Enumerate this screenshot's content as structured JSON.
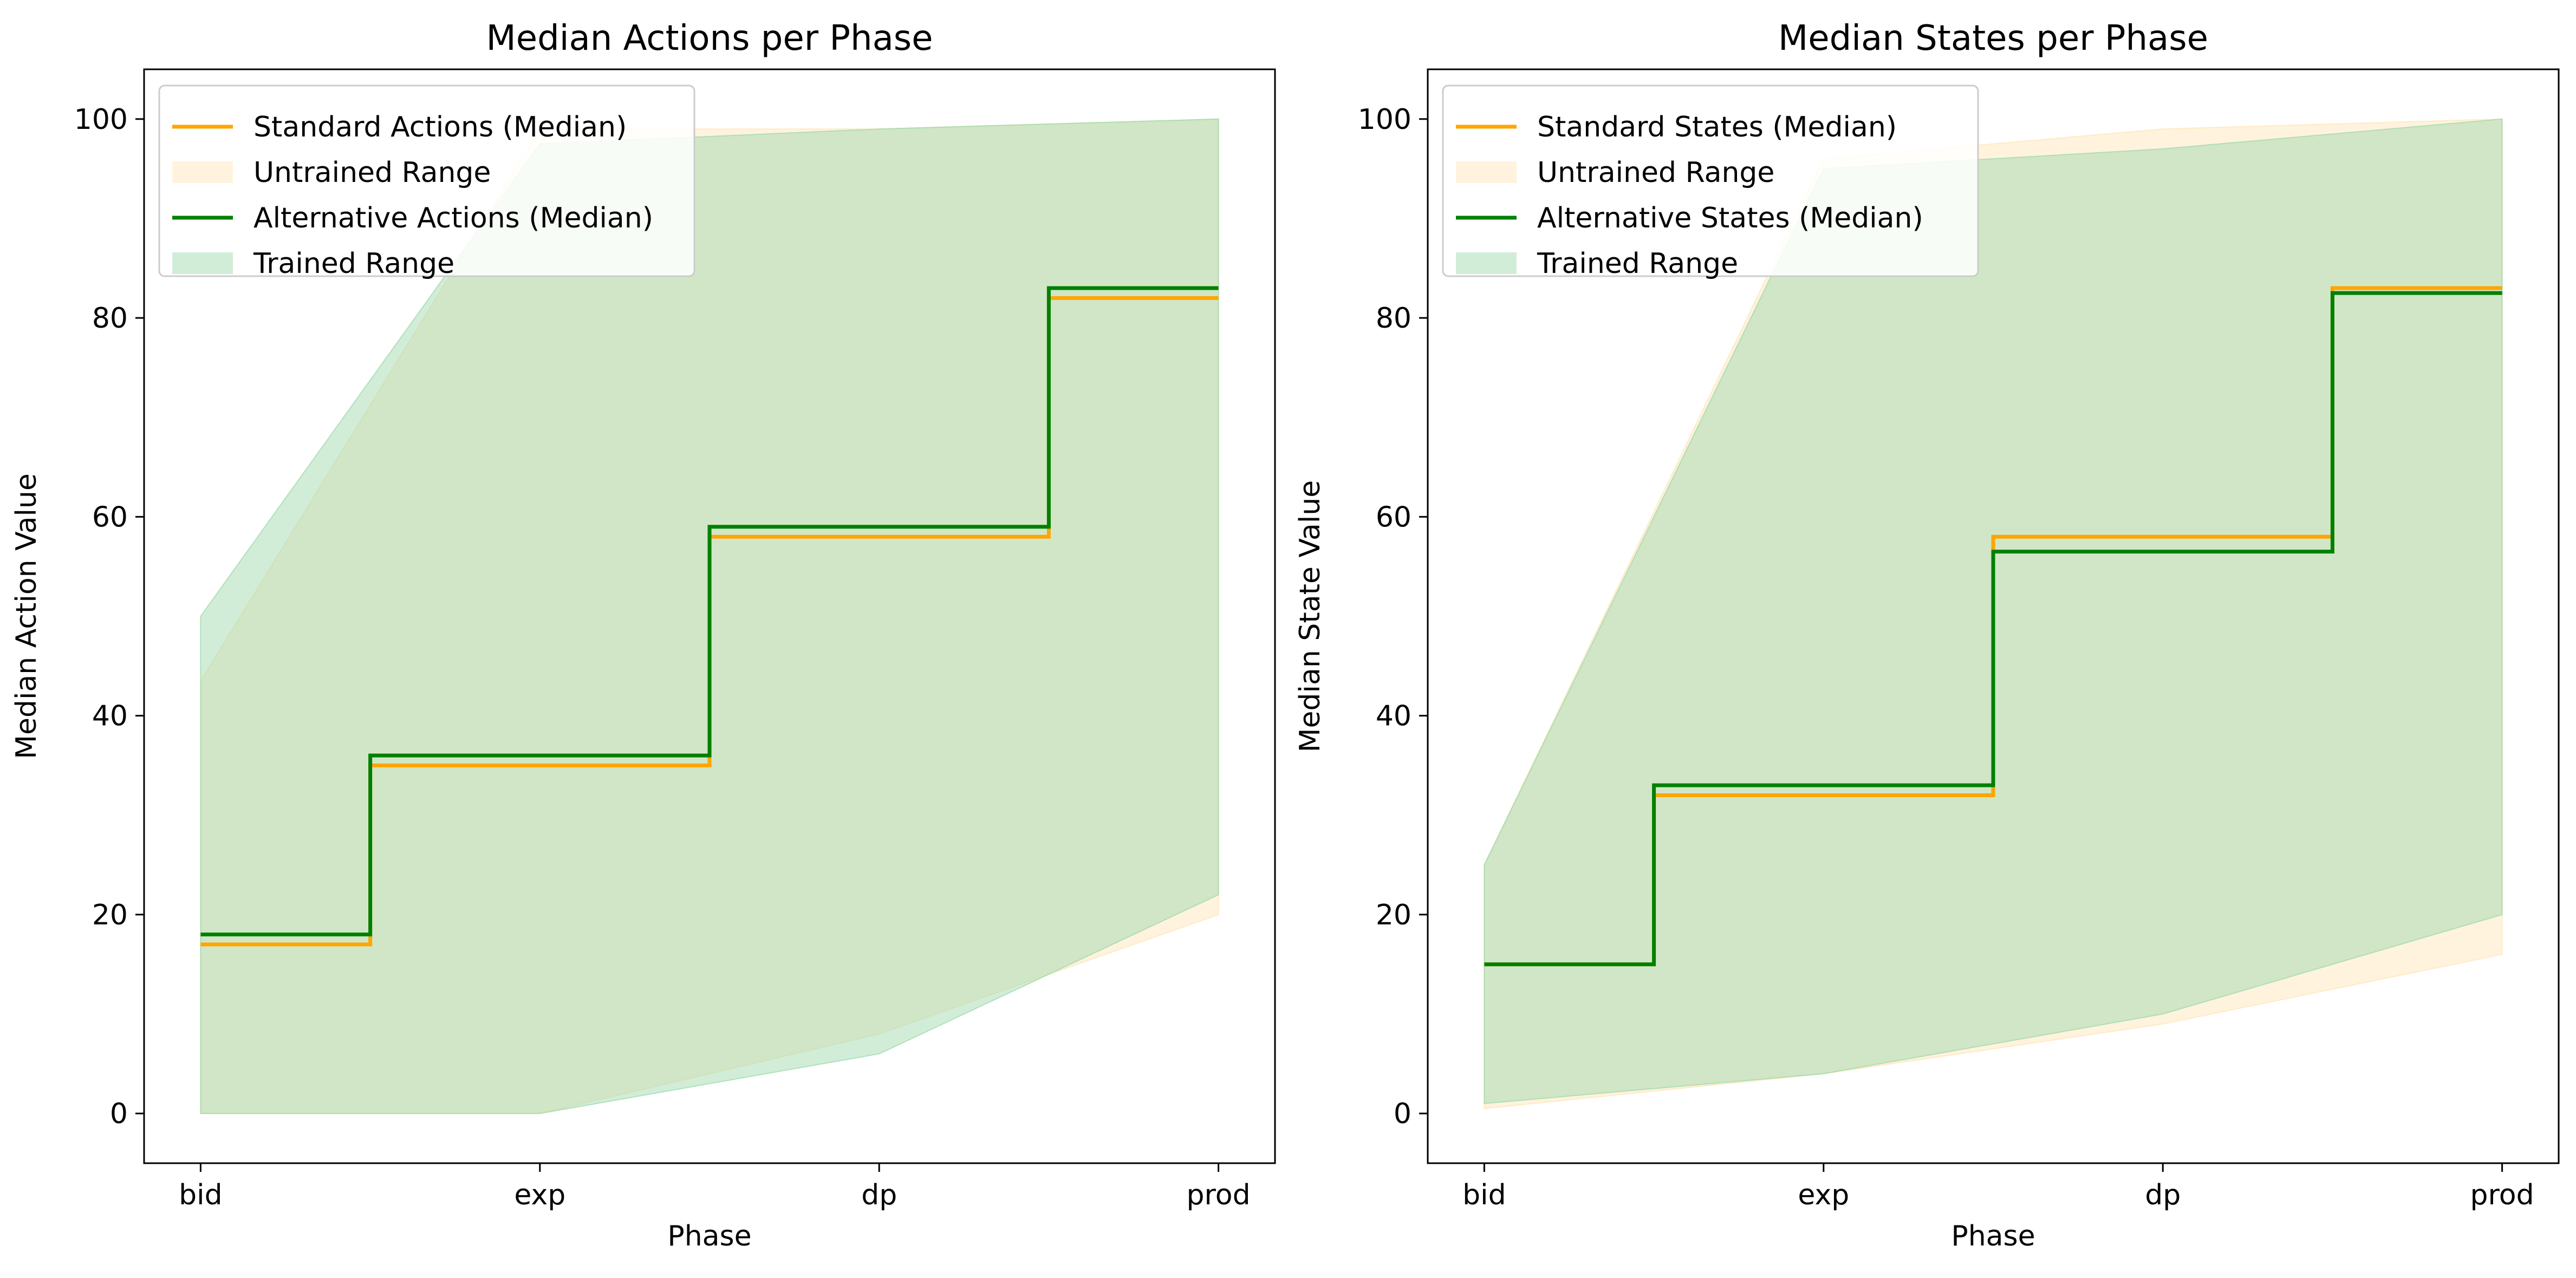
{
  "chart_data": [
    {
      "type": "step-line-with-range",
      "title": "Median Actions per Phase",
      "xlabel": "Phase",
      "ylabel": "Median Action Value",
      "categories": [
        "bid",
        "exp",
        "dp",
        "prod"
      ],
      "ylim": [
        -5,
        105
      ],
      "yticks": [
        0,
        20,
        40,
        60,
        80,
        100
      ],
      "legend_position": "top-left",
      "series": [
        {
          "name": "Standard Actions (Median)",
          "color": "#ffa500",
          "values": [
            17,
            35,
            58,
            82
          ]
        },
        {
          "name": "Alternative Actions (Median)",
          "color": "#008000",
          "values": [
            18,
            36,
            59,
            83
          ]
        }
      ],
      "ranges": [
        {
          "name": "Untrained Range",
          "color": "#ffe4b5",
          "lower": [
            0,
            0,
            8,
            20
          ],
          "upper": [
            43.5,
            99,
            99,
            100
          ]
        },
        {
          "name": "Trained Range",
          "color": "#98d8a8",
          "lower": [
            0,
            0,
            6,
            22
          ],
          "upper": [
            50,
            97.5,
            99,
            100
          ]
        }
      ],
      "legend": [
        {
          "kind": "line",
          "label": "Standard Actions (Median)",
          "color": "#ffa500"
        },
        {
          "kind": "patch",
          "label": "Untrained Range",
          "color": "#ffe4b5"
        },
        {
          "kind": "line",
          "label": "Alternative Actions (Median)",
          "color": "#008000"
        },
        {
          "kind": "patch",
          "label": "Trained Range",
          "color": "#98d8a8"
        }
      ]
    },
    {
      "type": "step-line-with-range",
      "title": "Median States per Phase",
      "xlabel": "Phase",
      "ylabel": "Median State Value",
      "categories": [
        "bid",
        "exp",
        "dp",
        "prod"
      ],
      "ylim": [
        -5,
        105
      ],
      "yticks": [
        0,
        20,
        40,
        60,
        80,
        100
      ],
      "legend_position": "top-left",
      "series": [
        {
          "name": "Standard States (Median)",
          "color": "#ffa500",
          "values": [
            15,
            32,
            58,
            83
          ]
        },
        {
          "name": "Alternative States (Median)",
          "color": "#008000",
          "values": [
            15,
            33,
            56.5,
            82.5
          ]
        }
      ],
      "ranges": [
        {
          "name": "Untrained Range",
          "color": "#ffe4b5",
          "lower": [
            0.5,
            4,
            9,
            16
          ],
          "upper": [
            25,
            96,
            99,
            100
          ]
        },
        {
          "name": "Trained Range",
          "color": "#98d8a8",
          "lower": [
            1,
            4,
            10,
            20
          ],
          "upper": [
            25,
            95,
            97,
            100
          ]
        }
      ],
      "legend": [
        {
          "kind": "line",
          "label": "Standard States (Median)",
          "color": "#ffa500"
        },
        {
          "kind": "patch",
          "label": "Untrained Range",
          "color": "#ffe4b5"
        },
        {
          "kind": "line",
          "label": "Alternative States (Median)",
          "color": "#008000"
        },
        {
          "kind": "patch",
          "label": "Trained Range",
          "color": "#98d8a8"
        }
      ]
    }
  ]
}
